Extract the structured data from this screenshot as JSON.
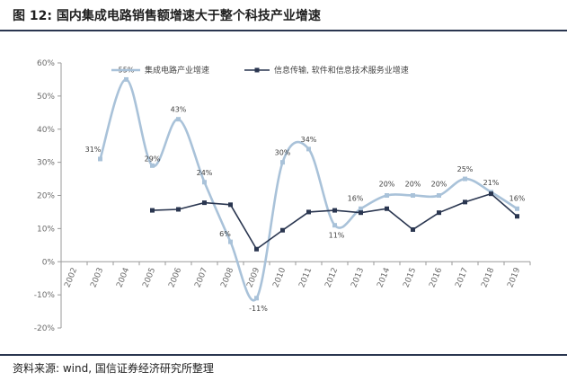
{
  "title": "图 12:  国内集成电路销售额增速大于整个科技产业增速",
  "source": "资料来源: wind, 国信证券经济研究所整理",
  "chart_data": {
    "type": "line",
    "title": "图 12:  国内集成电路销售额增速大于整个科技产业增速",
    "xlabel": "",
    "ylabel": "",
    "ylim": [
      -20,
      60
    ],
    "yticks": [
      "-20%",
      "-10%",
      "0%",
      "10%",
      "20%",
      "30%",
      "40%",
      "50%",
      "60%"
    ],
    "ytick_values": [
      -20,
      -10,
      0,
      10,
      20,
      30,
      40,
      50,
      60
    ],
    "categories": [
      "2002",
      "2003",
      "2004",
      "2005",
      "2006",
      "2007",
      "2008",
      "2009",
      "2010",
      "2011",
      "2012",
      "2013",
      "2014",
      "2015",
      "2016",
      "2017",
      "2018",
      "2019"
    ],
    "legend_position": "top",
    "grid": false,
    "series": [
      {
        "name": "集成电路产业增速",
        "color": "#a9c2d9",
        "values": [
          null,
          31,
          55,
          29,
          43,
          24,
          6,
          -11,
          30,
          34,
          11,
          16,
          20,
          20,
          20,
          25,
          21,
          16
        ],
        "labels": [
          "",
          "31%",
          "55%",
          "29%",
          "43%",
          "24%",
          "6%",
          "-11%",
          "30%",
          "34%",
          "11%",
          "16%",
          "20%",
          "20%",
          "20%",
          "25%",
          "21%",
          "16%"
        ]
      },
      {
        "name": "信息传输, 软件和信息技术服务业增速",
        "color": "#2a3650",
        "values": [
          null,
          null,
          null,
          15.5,
          15.8,
          17.8,
          17.2,
          3.8,
          9.5,
          15,
          15.5,
          14.8,
          16,
          9.7,
          14.8,
          18,
          20.5,
          13.7
        ]
      }
    ]
  }
}
